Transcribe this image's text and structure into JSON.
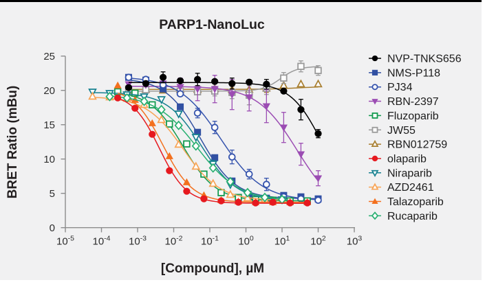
{
  "figure": {
    "background_color": "#f1f1f2",
    "top_border_color": "#000000"
  },
  "chart_data": {
    "type": "scatter",
    "title": "PARP1-NanoLuc",
    "xlabel": "[Compound], µM",
    "ylabel": "BRET Ratio (mBu)",
    "x_scale": "log",
    "xlim": [
      1e-05,
      1000
    ],
    "ylim": [
      0,
      25
    ],
    "y_ticks": [
      0,
      5,
      10,
      15,
      20,
      25
    ],
    "x_tick_exponents": [
      -5,
      -4,
      -3,
      -2,
      -1,
      0,
      1,
      2,
      3
    ],
    "legend_position": "right",
    "grid": false,
    "series": [
      {
        "name": "NVP-TNKS656",
        "color": "#000000",
        "marker": "circle",
        "filled": true,
        "x": [
          0.000565,
          0.00169,
          0.00508,
          0.0152,
          0.0457,
          0.137,
          0.412,
          1.23,
          3.7,
          11.1,
          33.3,
          100
        ],
        "y": [
          20.4,
          21.0,
          21.9,
          21.4,
          21.6,
          21.3,
          21.0,
          21.2,
          20.9,
          19.9,
          17.2,
          13.7
        ],
        "err": [
          0,
          0,
          0.8,
          0,
          0.9,
          0,
          0.8,
          0,
          0.7,
          0,
          1.5,
          0.6
        ],
        "fit": {
          "top": 21.15,
          "bottom": 3.5,
          "ec50": 130,
          "hill": 1.0
        }
      },
      {
        "name": "NMS-P118",
        "color": "#3150a2",
        "marker": "square",
        "filled": true,
        "x": [
          0.000565,
          0.00169,
          0.00508,
          0.0152,
          0.0457,
          0.137,
          0.412,
          1.23,
          3.7,
          11.1,
          33.3,
          100
        ],
        "y": [
          21.9,
          21.5,
          20.2,
          17.6,
          13.9,
          10.2,
          6.8,
          4.5,
          4.3,
          4.7,
          4.5,
          4.2
        ],
        "err": [
          0,
          0,
          0,
          0,
          0,
          0,
          0,
          0,
          0,
          0,
          0,
          0
        ],
        "fit": {
          "top": 21.8,
          "bottom": 4.2,
          "ec50": 0.055,
          "hill": 0.9
        }
      },
      {
        "name": "PJ34",
        "color": "#3553ad",
        "marker": "circle",
        "filled": false,
        "x": [
          0.000565,
          0.00169,
          0.00508,
          0.0152,
          0.0457,
          0.137,
          0.412,
          1.23,
          3.7,
          11.1,
          33.3,
          100
        ],
        "y": [
          21.9,
          21.6,
          20.8,
          19.5,
          16.7,
          14.6,
          10.3,
          7.8,
          6.3,
          4.5,
          4.2,
          4.0
        ],
        "err": [
          0,
          0,
          0,
          0,
          0.7,
          0.9,
          1.0,
          0.7,
          0.9,
          0.5,
          0,
          0
        ],
        "fit": {
          "top": 22.0,
          "bottom": 3.9,
          "ec50": 0.2,
          "hill": 0.75
        }
      },
      {
        "name": "RBN-2397",
        "color": "#9b4cb3",
        "marker": "triangle-down",
        "filled": true,
        "x": [
          0.000565,
          0.00169,
          0.00508,
          0.0152,
          0.0457,
          0.137,
          0.412,
          1.23,
          3.7,
          11.1,
          33.3,
          100
        ],
        "y": [
          20.9,
          20.8,
          21.0,
          20.5,
          20.2,
          20.2,
          19.4,
          19.0,
          17.7,
          14.6,
          10.7,
          7.2
        ],
        "err": [
          0,
          0,
          0.9,
          1.3,
          1.7,
          2.0,
          2.2,
          2.0,
          2.4,
          2.2,
          1.6,
          1.1
        ],
        "fit": {
          "top": 20.6,
          "bottom": 2.0,
          "ec50": 26,
          "hill": 0.78
        }
      },
      {
        "name": "Fluzoparib",
        "color": "#129a4e",
        "marker": "square",
        "filled": false,
        "x": [
          0.000282,
          0.000847,
          0.00254,
          0.00762,
          0.0229,
          0.0686,
          0.206,
          0.617,
          1.85,
          5.56,
          16.7,
          50
        ],
        "y": [
          19.8,
          19.6,
          17.9,
          15.1,
          12.2,
          7.8,
          5.1,
          4.4,
          4.1,
          4.0,
          3.9,
          3.9
        ],
        "err": [
          0,
          0,
          0,
          0,
          0,
          0,
          0,
          0,
          0,
          0,
          0,
          0
        ],
        "fit": {
          "top": 19.9,
          "bottom": 3.9,
          "ec50": 0.018,
          "hill": 0.95
        }
      },
      {
        "name": "JW55",
        "color": "#9a9a9a",
        "marker": "square",
        "filled": false,
        "x": [
          0.000565,
          0.00169,
          0.00508,
          0.0152,
          0.0457,
          0.137,
          0.412,
          1.23,
          3.7,
          11.1,
          33.3,
          100
        ],
        "y": [
          20.2,
          20.1,
          20.3,
          19.9,
          19.8,
          19.9,
          19.7,
          19.3,
          20.3,
          21.8,
          23.5,
          22.9
        ],
        "err": [
          0,
          0,
          0,
          0,
          0,
          0.7,
          0.9,
          1.4,
          0.9,
          0.8,
          0.8,
          0.7
        ],
        "fit": {
          "top": 19.9,
          "bottom": 23.5,
          "ec50": 9,
          "hill": 1.8
        }
      },
      {
        "name": "RBN012759",
        "color": "#a87e2f",
        "marker": "triangle-up",
        "filled": false,
        "x": [
          0.000565,
          0.00169,
          0.00508,
          0.0152,
          0.0457,
          0.137,
          0.412,
          1.23,
          3.7,
          11.1,
          33.3,
          100
        ],
        "y": [
          20.0,
          20.1,
          20.0,
          20.1,
          20.1,
          20.2,
          20.1,
          20.1,
          20.3,
          20.7,
          20.9,
          20.9
        ],
        "err": [
          0,
          0,
          0,
          0,
          0,
          0,
          0,
          0,
          0.6,
          0.7,
          0,
          0
        ],
        "fit": {
          "top": 20.15,
          "bottom": 20.6,
          "ec50": 30,
          "hill": 1.0
        }
      },
      {
        "name": "olaparib",
        "color": "#e6191f",
        "marker": "circle",
        "filled": true,
        "x": [
          0.000282,
          0.000847,
          0.00254,
          0.00762,
          0.0229,
          0.0686,
          0.206,
          0.617,
          1.85,
          5.56,
          16.7,
          50
        ],
        "y": [
          18.9,
          17.4,
          13.6,
          8.3,
          5.3,
          4.2,
          3.9,
          3.7,
          3.6,
          3.7,
          3.6,
          3.6
        ],
        "err": [
          0,
          0,
          0,
          0,
          0,
          0,
          0,
          0,
          0,
          0,
          0,
          0
        ],
        "fit": {
          "top": 19.6,
          "bottom": 3.55,
          "ec50": 0.004,
          "hill": 1.15
        }
      },
      {
        "name": "Niraparib",
        "color": "#15808f",
        "marker": "triangle-down",
        "filled": false,
        "x": [
          5.65e-05,
          0.000169,
          0.000508,
          0.00152,
          0.00457,
          0.0137,
          0.0412,
          0.123,
          0.37,
          1.11,
          3.33,
          10
        ],
        "y": [
          19.8,
          19.6,
          19.4,
          19.1,
          18.7,
          16.6,
          13.2,
          9.3,
          6.3,
          4.9,
          4.3,
          4.1
        ],
        "err": [
          0,
          0,
          0,
          0,
          0,
          0,
          0,
          0.5,
          0,
          0,
          0,
          0
        ],
        "fit": {
          "top": 19.7,
          "bottom": 3.95,
          "ec50": 0.06,
          "hill": 0.9
        }
      },
      {
        "name": "AZD2461",
        "color": "#f8a455",
        "marker": "triangle-up",
        "filled": false,
        "x": [
          5.65e-05,
          0.000169,
          0.000508,
          0.00152,
          0.00457,
          0.0137,
          0.0412,
          0.123,
          0.37,
          1.11,
          3.33,
          10
        ],
        "y": [
          19.1,
          19.0,
          18.8,
          17.9,
          15.7,
          12.1,
          8.9,
          6.4,
          4.8,
          4.3,
          4.1,
          4.0
        ],
        "err": [
          0,
          0,
          0,
          0,
          0,
          0,
          0,
          0,
          0,
          0,
          0,
          0
        ],
        "fit": {
          "top": 19.1,
          "bottom": 3.95,
          "ec50": 0.018,
          "hill": 0.85
        }
      },
      {
        "name": "Talazoparib",
        "color": "#f3701e",
        "marker": "triangle-up",
        "filled": true,
        "x": [
          0.000282,
          0.000847,
          0.00254,
          0.00762,
          0.0229,
          0.0686,
          0.206,
          0.617,
          1.85,
          5.56,
          16.7,
          50
        ],
        "y": [
          20.7,
          18.6,
          15.2,
          10.4,
          6.6,
          4.7,
          4.0,
          3.8,
          3.7,
          3.7,
          3.7,
          3.7
        ],
        "err": [
          0,
          0,
          0,
          0,
          0,
          0,
          0,
          0,
          0,
          0,
          0,
          0
        ],
        "fit": {
          "top": 20.4,
          "bottom": 3.7,
          "ec50": 0.005,
          "hill": 1.05
        }
      },
      {
        "name": "Rucaparib",
        "color": "#28b071",
        "marker": "diamond",
        "filled": false,
        "x": [
          0.000169,
          0.000508,
          0.00152,
          0.00457,
          0.0137,
          0.0412,
          0.123,
          0.37,
          1.11,
          3.33,
          10
        ],
        "y": [
          19.1,
          18.9,
          18.4,
          17.2,
          14.9,
          11.9,
          8.7,
          6.7,
          5.1,
          4.4,
          4.1
        ],
        "err": [
          0,
          0,
          0,
          0,
          0,
          0,
          0,
          0,
          0,
          0,
          0
        ],
        "fit": {
          "top": 19.4,
          "bottom": 3.9,
          "ec50": 0.045,
          "hill": 0.75
        }
      }
    ]
  }
}
